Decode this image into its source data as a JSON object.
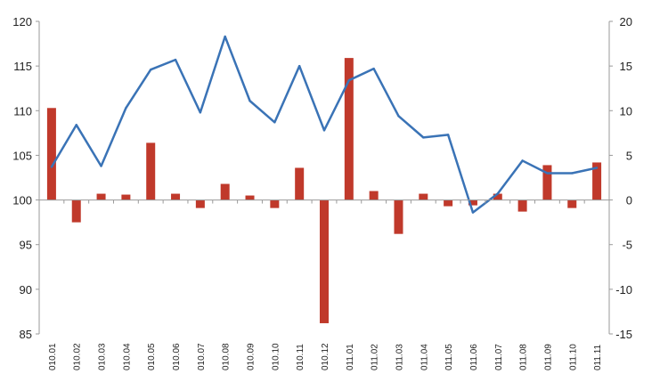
{
  "chart_data": {
    "type": "bar+line",
    "categories": [
      "010.01",
      "010.02",
      "010.03",
      "010.04",
      "010.05",
      "010.06",
      "010.07",
      "010.08",
      "010.09",
      "010.10",
      "010.11",
      "010.12",
      "011.01",
      "011.02",
      "011.03",
      "011.04",
      "011.05",
      "011.06",
      "011.07",
      "011.08",
      "011.09",
      "011.10",
      "011.11"
    ],
    "bar_series": {
      "axis": "right",
      "color": "#c0392b",
      "values": [
        10.3,
        -2.5,
        0.7,
        0.6,
        6.4,
        0.7,
        -0.9,
        1.8,
        0.5,
        -0.9,
        3.6,
        -13.8,
        15.9,
        1.0,
        -3.8,
        0.7,
        -0.7,
        -0.6,
        0.7,
        -1.3,
        3.9,
        -0.9,
        4.2
      ]
    },
    "line_series": {
      "axis": "left",
      "color": "#3a73b6",
      "values": [
        103.7,
        108.4,
        103.8,
        110.3,
        114.6,
        115.7,
        109.8,
        118.3,
        111.1,
        108.7,
        115.0,
        107.8,
        113.4,
        114.7,
        109.4,
        107.0,
        107.3,
        98.6,
        100.7,
        104.4,
        103.0,
        103.0,
        103.6
      ]
    },
    "y_left": {
      "min": 85,
      "max": 120,
      "ticks": [
        85,
        90,
        95,
        100,
        105,
        110,
        115,
        120
      ]
    },
    "y_right": {
      "min": -15,
      "max": 20,
      "ticks": [
        -15,
        -10,
        -5,
        0,
        5,
        10,
        15,
        20
      ]
    },
    "grid": false
  }
}
